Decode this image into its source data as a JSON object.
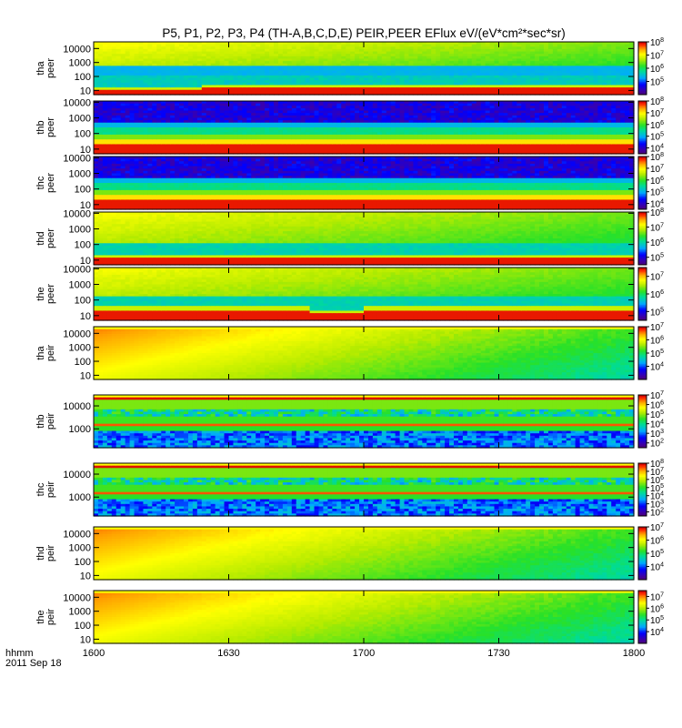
{
  "chart_data": {
    "type": "heatmap",
    "title": "P5, P1, P2, P3, P4 (TH-A,B,C,D,E) PEIR,PEER EFlux eV/(eV*cm²*sec*sr)",
    "x_ticks": [
      "1600",
      "1630",
      "1700",
      "1730",
      "1800"
    ],
    "x_caption": [
      "hhmm",
      "2011 Sep 18"
    ],
    "panels": [
      {
        "label": [
          "tha",
          "peer"
        ],
        "y_ticks": [
          "10000",
          "1000",
          "100",
          "10"
        ],
        "y_range": [
          5,
          30000
        ],
        "cb_exps": [
          "8",
          "7",
          "6",
          "5"
        ],
        "profile": "peer_a",
        "overflow": [
          0.03,
          0.27,
          0.97
        ],
        "cb_range": [
          4,
          8
        ]
      },
      {
        "label": [
          "thb",
          "peer"
        ],
        "y_ticks": [
          "10000",
          "1000",
          "100",
          "10"
        ],
        "y_range": [
          5,
          12000
        ],
        "cb_exps": [
          "8",
          "7",
          "6",
          "5",
          "4"
        ],
        "profile": "peer_bc",
        "cb_range": [
          3.5,
          8
        ]
      },
      {
        "label": [
          "thc",
          "peer"
        ],
        "y_ticks": [
          "10000",
          "1000",
          "100",
          "10"
        ],
        "y_range": [
          5,
          12000
        ],
        "cb_exps": [
          "8",
          "7",
          "6",
          "5",
          "4"
        ],
        "profile": "peer_bc",
        "cb_range": [
          3.5,
          8
        ]
      },
      {
        "label": [
          "thd",
          "peer"
        ],
        "y_ticks": [
          "10000",
          "1000",
          "100",
          "10"
        ],
        "y_range": [
          5,
          12000
        ],
        "cb_exps": [
          "8",
          "7",
          "6",
          "5"
        ],
        "profile": "peer_d",
        "cb_range": [
          4.5,
          8
        ]
      },
      {
        "label": [
          "the",
          "peer"
        ],
        "y_ticks": [
          "10000",
          "1000",
          "100",
          "10"
        ],
        "y_range": [
          5,
          12000
        ],
        "cb_exps": [
          "7",
          "6",
          "5"
        ],
        "profile": "peer_e",
        "cb_range": [
          4.5,
          7.5
        ]
      },
      {
        "label": [
          "tha",
          "peir"
        ],
        "y_ticks": [
          "10000",
          "1000",
          "100",
          "10"
        ],
        "y_range": [
          5,
          30000
        ],
        "cb_exps": [
          "7",
          "6",
          "5",
          "4"
        ],
        "profile": "peir",
        "cb_range": [
          3,
          7
        ]
      },
      {
        "label": [
          "thb",
          "peir"
        ],
        "y_ticks": [
          "10000",
          "1000"
        ],
        "y_range": [
          150,
          30000
        ],
        "cb_exps": [
          "7",
          "6",
          "5",
          "4",
          "3",
          "2"
        ],
        "profile": "peir_bc",
        "cb_range": [
          1.5,
          7
        ]
      },
      {
        "label": [
          "thc",
          "peir"
        ],
        "y_ticks": [
          "10000",
          "1000"
        ],
        "y_range": [
          150,
          30000
        ],
        "cb_exps": [
          "8",
          "7",
          "6",
          "5",
          "4",
          "3",
          "2"
        ],
        "profile": "peir_bc",
        "cb_range": [
          1.5,
          8
        ]
      },
      {
        "label": [
          "thd",
          "peir"
        ],
        "y_ticks": [
          "10000",
          "1000",
          "100",
          "10"
        ],
        "y_range": [
          5,
          30000
        ],
        "cb_exps": [
          "7",
          "6",
          "5",
          "4"
        ],
        "profile": "peir",
        "cb_range": [
          3,
          7
        ]
      },
      {
        "label": [
          "the",
          "peir"
        ],
        "y_ticks": [
          "10000",
          "1000",
          "100",
          "10"
        ],
        "y_range": [
          5,
          30000
        ],
        "cb_exps": [
          "7",
          "6",
          "5",
          "4"
        ],
        "profile": "peir",
        "cb_range": [
          3,
          7.5
        ]
      }
    ]
  }
}
